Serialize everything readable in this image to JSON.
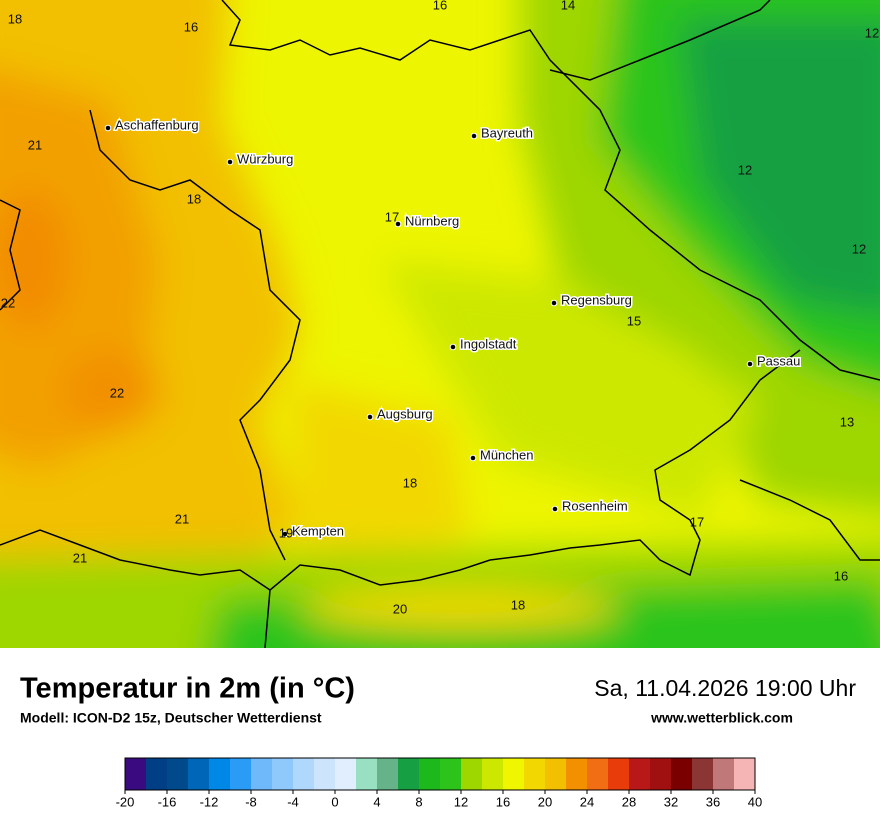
{
  "header": {
    "title": "Temperatur in 2m (in °C)",
    "model": "Modell: ICON-D2 15z, Deutscher Wetterdienst",
    "datetime": "Sa, 11.04.2026 19:00 Uhr",
    "website": "www.wetterblick.com"
  },
  "map": {
    "cities": [
      "Aschaffenburg",
      "Würzburg",
      "Bayreuth",
      "Nürnberg",
      "Regensburg",
      "Ingolstadt",
      "Passau",
      "Augsburg",
      "München",
      "Rosenheim",
      "Kempten"
    ],
    "temperatures": [
      18,
      16,
      16,
      14,
      12,
      21,
      18,
      17,
      12,
      12,
      22,
      15,
      22,
      13,
      18,
      21,
      19,
      17,
      21,
      16,
      20,
      18
    ]
  },
  "legend": {
    "range": [
      -20,
      40
    ],
    "ticks": [
      -20,
      -16,
      -12,
      -8,
      -4,
      0,
      4,
      8,
      12,
      16,
      20,
      24,
      28,
      32,
      36,
      40
    ],
    "colors": [
      "#3a0a80",
      "#003f85",
      "#004a8c",
      "#0066b8",
      "#0088e6",
      "#2b9cf5",
      "#6fb9fa",
      "#8fc8fb",
      "#b0d7fc",
      "#cce4fc",
      "#e0eefd",
      "#99dfc2",
      "#66b38a",
      "#17a043",
      "#1cb81c",
      "#2cc41a",
      "#9ed600",
      "#cde800",
      "#f0f500",
      "#f2d800",
      "#f2c000",
      "#f29000",
      "#f26e14",
      "#e83c0a",
      "#b81818",
      "#a01010",
      "#7a0000",
      "#8b3535",
      "#c07878",
      "#f5b5b5"
    ]
  }
}
